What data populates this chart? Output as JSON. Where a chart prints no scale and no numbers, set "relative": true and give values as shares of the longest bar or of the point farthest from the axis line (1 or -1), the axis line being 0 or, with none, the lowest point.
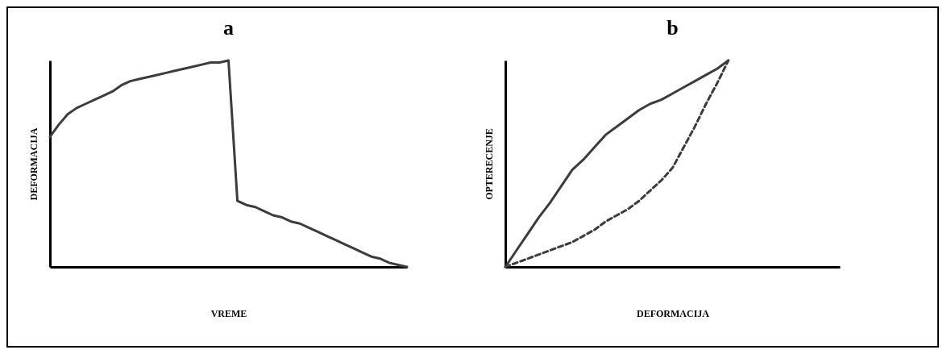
{
  "chart_data": [
    {
      "type": "line",
      "title": "a",
      "xlabel": "VREME",
      "ylabel": "DEFORMACIJA",
      "relative": true,
      "categories": [
        null,
        null,
        null,
        null,
        null,
        null,
        null,
        null,
        null,
        null,
        null,
        null,
        null,
        null,
        null,
        null,
        null,
        null,
        null,
        null,
        null,
        null,
        null,
        null,
        null,
        null,
        null,
        null,
        null,
        null,
        null,
        null,
        null,
        null,
        null,
        null,
        null,
        null,
        null,
        null,
        null
      ],
      "series": [
        {
          "color": "#3c3c3c",
          "line_style": "solid",
          "values": [
            0.63,
            0.69,
            0.74,
            0.77,
            0.79,
            0.81,
            0.83,
            0.85,
            0.88,
            0.9,
            0.91,
            0.92,
            0.93,
            0.94,
            0.95,
            0.96,
            0.97,
            0.98,
            0.99,
            0.99,
            1,
            0.32,
            0.3,
            0.29,
            0.27,
            0.25,
            0.24,
            0.22,
            0.21,
            0.19,
            0.17,
            0.15,
            0.13,
            0.11,
            0.09,
            0.07,
            0.05,
            0.04,
            0.02,
            0.01,
            0
          ]
        }
      ]
    },
    {
      "type": "line",
      "title": "b",
      "xlabel": "DEFORMACIJA",
      "ylabel": "OPTERECENJE",
      "relative": true,
      "categories": [
        null,
        null,
        null,
        null,
        null,
        null,
        null,
        null,
        null,
        null,
        null,
        null,
        null,
        null,
        null,
        null,
        null,
        null,
        null,
        null,
        null,
        null,
        null,
        null,
        null,
        null,
        null,
        null,
        null,
        null,
        null
      ],
      "series": [
        {
          "color": "#3c3c3c",
          "line_style": "solid",
          "values": [
            0,
            0.08,
            0.16,
            0.24,
            0.31,
            0.39,
            0.47,
            0.52,
            0.58,
            0.64,
            0.68,
            0.72,
            0.76,
            0.79,
            0.81,
            0.84,
            0.87,
            0.9,
            0.93,
            0.96,
            1,
            null,
            null,
            null,
            null,
            null,
            null,
            null,
            null,
            null,
            null
          ]
        },
        {
          "color": "#3c3c3c",
          "line_style": "dashed",
          "values": [
            0,
            0.02,
            0.04,
            0.06,
            0.08,
            0.1,
            0.12,
            0.15,
            0.18,
            0.22,
            0.25,
            0.28,
            0.32,
            0.37,
            0.42,
            0.48,
            0.58,
            0.68,
            0.79,
            0.89,
            1,
            null,
            null,
            null,
            null,
            null,
            null,
            null,
            null,
            null,
            null
          ]
        }
      ]
    }
  ]
}
